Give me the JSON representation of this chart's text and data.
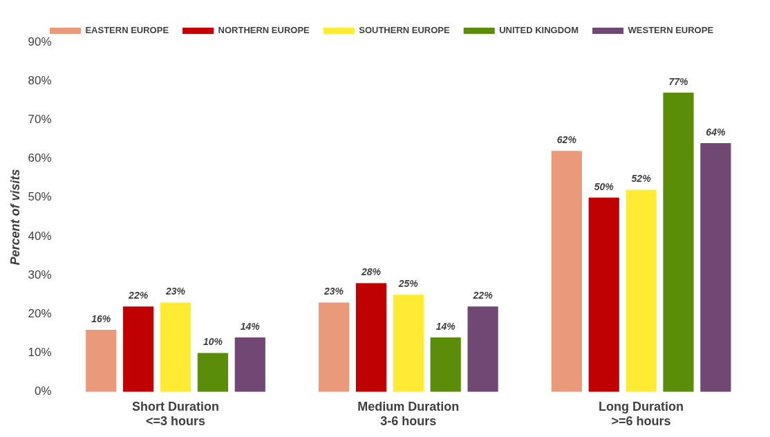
{
  "chart_data": {
    "type": "bar",
    "ylabel": "Percent of visits",
    "categories": [
      "Short Duration\n<=3 hours",
      "Medium Duration\n3-6 hours",
      "Long Duration\n>=6 hours"
    ],
    "series": [
      {
        "name": "EASTERN EUROPE",
        "color": "#ea997b",
        "values": [
          16,
          23,
          62
        ],
        "value_labels": [
          "16%",
          "23%",
          "62%"
        ]
      },
      {
        "name": "NORTHERN EUROPE",
        "color": "#c00000",
        "values": [
          22,
          28,
          50
        ],
        "value_labels": [
          "22%",
          "28%",
          "50%"
        ]
      },
      {
        "name": "SOUTHERN EUROPE",
        "color": "#ffeb33",
        "values": [
          23,
          25,
          52
        ],
        "value_labels": [
          "23%",
          "25%",
          "52%"
        ]
      },
      {
        "name": "UNITED KINGDOM",
        "color": "#5b8c0a",
        "values": [
          10,
          14,
          77
        ],
        "value_labels": [
          "10%",
          "14%",
          "77%"
        ]
      },
      {
        "name": "WESTERN EUROPE",
        "color": "#704873",
        "values": [
          14,
          22,
          64
        ],
        "value_labels": [
          "14%",
          "22%",
          "64%"
        ]
      }
    ],
    "ylim": [
      0,
      90
    ],
    "yticks": [
      {
        "value": 0,
        "label": "0%"
      },
      {
        "value": 10,
        "label": "10%"
      },
      {
        "value": 20,
        "label": "20%"
      },
      {
        "value": 30,
        "label": "30%"
      },
      {
        "value": 40,
        "label": "40%"
      },
      {
        "value": 50,
        "label": "50%"
      },
      {
        "value": 60,
        "label": "60%"
      },
      {
        "value": 70,
        "label": "70%"
      },
      {
        "value": 80,
        "label": "80%"
      },
      {
        "value": 90,
        "label": "90%"
      }
    ],
    "grid": false,
    "legend": "top"
  }
}
